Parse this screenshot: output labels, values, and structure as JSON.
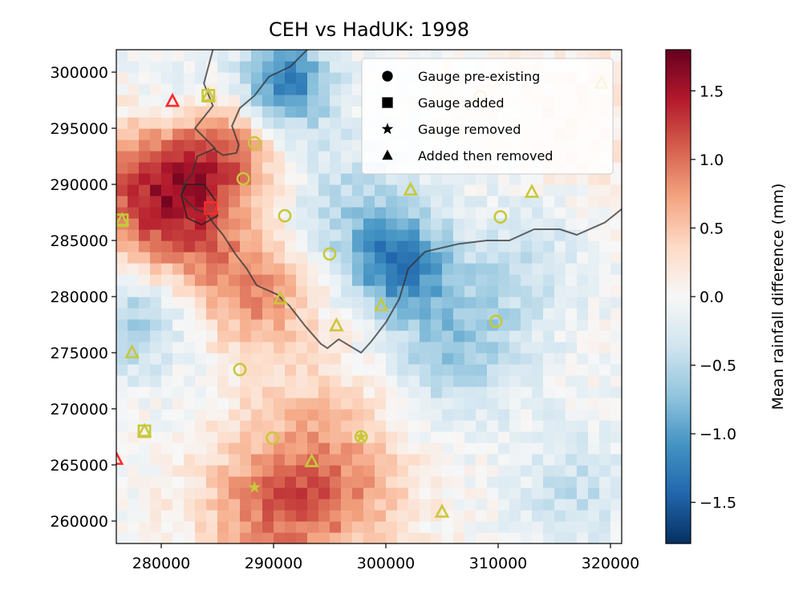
{
  "chart_data": {
    "type": "heatmap",
    "title": "CEH vs HadUK: 1998",
    "xlim": [
      276000,
      321000
    ],
    "ylim": [
      258000,
      302000
    ],
    "x_ticks": [
      280000,
      290000,
      300000,
      310000,
      320000
    ],
    "x_tick_labels": [
      "280000",
      "290000",
      "300000",
      "310000",
      "320000"
    ],
    "y_ticks": [
      260000,
      265000,
      270000,
      275000,
      280000,
      285000,
      290000,
      295000,
      300000
    ],
    "y_tick_labels": [
      "260000",
      "265000",
      "270000",
      "275000",
      "280000",
      "285000",
      "290000",
      "295000",
      "300000"
    ],
    "grid": false,
    "grid_cell_size": 1000,
    "colormap": "RdBu_r",
    "colorbar": {
      "label": "Mean rainfall difference (mm)",
      "range": [
        -1.8,
        1.8
      ],
      "ticks": [
        -1.5,
        -1.0,
        -0.5,
        0.0,
        0.5,
        1.0,
        1.5
      ],
      "tick_labels": [
        "−1.5",
        "−1.0",
        "−0.5",
        "0.0",
        "0.5",
        "1.0",
        "1.5"
      ]
    },
    "field_features": {
      "hot_spots": [
        {
          "x": 280000,
          "y": 289000,
          "value": 1.4,
          "spread": 4500
        },
        {
          "x": 286000,
          "y": 293000,
          "value": 0.8,
          "spread": 3500
        },
        {
          "x": 289000,
          "y": 280000,
          "value": 0.7,
          "spread": 3500
        },
        {
          "x": 290000,
          "y": 261000,
          "value": 0.9,
          "spread": 4500
        },
        {
          "x": 297000,
          "y": 262000,
          "value": 0.5,
          "spread": 4000
        },
        {
          "x": 294000,
          "y": 269000,
          "value": 0.4,
          "spread": 5000
        },
        {
          "x": 284000,
          "y": 283000,
          "value": 0.4,
          "spread": 4000
        },
        {
          "x": 316000,
          "y": 294000,
          "value": 0.3,
          "spread": 6000
        }
      ],
      "cold_spots": [
        {
          "x": 291000,
          "y": 299000,
          "value": -1.3,
          "spread": 3000
        },
        {
          "x": 301000,
          "y": 283000,
          "value": -1.1,
          "spread": 3000
        },
        {
          "x": 306000,
          "y": 276000,
          "value": -0.7,
          "spread": 4500
        },
        {
          "x": 278000,
          "y": 278000,
          "value": -0.7,
          "spread": 3500
        },
        {
          "x": 297000,
          "y": 288000,
          "value": -0.5,
          "spread": 4500
        },
        {
          "x": 313000,
          "y": 285000,
          "value": -0.4,
          "spread": 5000
        },
        {
          "x": 317000,
          "y": 263000,
          "value": -0.4,
          "spread": 4000
        },
        {
          "x": 281000,
          "y": 298000,
          "value": -0.3,
          "spread": 3000
        }
      ]
    },
    "boundaries": [
      {
        "color": "#333333",
        "points": [
          [
            284600,
            302000
          ],
          [
            283800,
            299000
          ],
          [
            284600,
            297000
          ],
          [
            283000,
            295000
          ],
          [
            284800,
            293200
          ],
          [
            283200,
            292500
          ],
          [
            282800,
            291000
          ],
          [
            282000,
            290000
          ],
          [
            281800,
            289000
          ],
          [
            283000,
            287800
          ],
          [
            284000,
            287500
          ],
          [
            284600,
            286600
          ],
          [
            285500,
            285500
          ],
          [
            286600,
            283800
          ],
          [
            287600,
            282500
          ],
          [
            288500,
            281000
          ],
          [
            290300,
            280200
          ],
          [
            291400,
            279200
          ],
          [
            292800,
            277400
          ],
          [
            294200,
            275800
          ],
          [
            294800,
            275400
          ],
          [
            295800,
            276200
          ],
          [
            297800,
            275000
          ],
          [
            298700,
            276000
          ],
          [
            300000,
            277700
          ],
          [
            301200,
            279800
          ],
          [
            302000,
            282500
          ],
          [
            303500,
            284000
          ],
          [
            306500,
            284700
          ],
          [
            309000,
            285000
          ],
          [
            311000,
            285000
          ],
          [
            313200,
            286000
          ],
          [
            315500,
            286000
          ],
          [
            317000,
            285500
          ],
          [
            319500,
            286600
          ],
          [
            321000,
            287800
          ]
        ]
      },
      {
        "color": "#333333",
        "points": [
          [
            293000,
            302000
          ],
          [
            291500,
            300500
          ],
          [
            289600,
            299600
          ],
          [
            288300,
            297900
          ],
          [
            287000,
            296800
          ],
          [
            286300,
            295200
          ],
          [
            286900,
            293500
          ],
          [
            286700,
            292800
          ],
          [
            285500,
            292600
          ],
          [
            284600,
            293200
          ]
        ]
      },
      {
        "color": "#222222",
        "points": [
          [
            281800,
            289000
          ],
          [
            282200,
            290000
          ],
          [
            283800,
            290000
          ],
          [
            284800,
            288600
          ],
          [
            285000,
            287200
          ],
          [
            283600,
            286400
          ],
          [
            282300,
            287000
          ],
          [
            281800,
            289000
          ]
        ]
      }
    ],
    "markers": [
      {
        "x": 281000,
        "y": 297400,
        "shape": "triangle",
        "color": "#ff2a2a"
      },
      {
        "x": 284200,
        "y": 297900,
        "shape": "square",
        "color": "#c8c83a"
      },
      {
        "x": 284200,
        "y": 297900,
        "shape": "triangle",
        "color": "#c8c83a"
      },
      {
        "x": 288300,
        "y": 293700,
        "shape": "circle",
        "color": "#c8c83a"
      },
      {
        "x": 287300,
        "y": 290500,
        "shape": "circle",
        "color": "#c8c83a"
      },
      {
        "x": 284400,
        "y": 287900,
        "shape": "square",
        "color": "#ff2a2a"
      },
      {
        "x": 276500,
        "y": 286800,
        "shape": "square",
        "color": "#c8c83a"
      },
      {
        "x": 276500,
        "y": 286800,
        "shape": "triangle",
        "color": "#c8c83a"
      },
      {
        "x": 291000,
        "y": 287200,
        "shape": "circle",
        "color": "#c8c83a"
      },
      {
        "x": 295000,
        "y": 283800,
        "shape": "circle",
        "color": "#c8c83a"
      },
      {
        "x": 302200,
        "y": 289500,
        "shape": "triangle",
        "color": "#c8c83a"
      },
      {
        "x": 313000,
        "y": 289300,
        "shape": "triangle",
        "color": "#c8c83a"
      },
      {
        "x": 310200,
        "y": 287100,
        "shape": "circle",
        "color": "#c8c83a"
      },
      {
        "x": 308400,
        "y": 297800,
        "shape": "circle",
        "color": "#c8c83a"
      },
      {
        "x": 319200,
        "y": 299000,
        "shape": "triangle",
        "color": "#c8c83a"
      },
      {
        "x": 290600,
        "y": 279800,
        "shape": "triangle",
        "color": "#c8c83a"
      },
      {
        "x": 299600,
        "y": 279200,
        "shape": "triangle",
        "color": "#c8c83a"
      },
      {
        "x": 295600,
        "y": 277400,
        "shape": "triangle",
        "color": "#c8c83a"
      },
      {
        "x": 309800,
        "y": 277800,
        "shape": "circle",
        "color": "#c8c83a"
      },
      {
        "x": 277400,
        "y": 275000,
        "shape": "triangle",
        "color": "#c8c83a"
      },
      {
        "x": 287000,
        "y": 273500,
        "shape": "circle",
        "color": "#c8c83a"
      },
      {
        "x": 278500,
        "y": 268000,
        "shape": "square",
        "color": "#c8c83a"
      },
      {
        "x": 278500,
        "y": 268000,
        "shape": "triangle",
        "color": "#c8c83a"
      },
      {
        "x": 289900,
        "y": 267400,
        "shape": "circle",
        "color": "#c8c83a"
      },
      {
        "x": 297800,
        "y": 267500,
        "shape": "circle",
        "color": "#c8c83a"
      },
      {
        "x": 297800,
        "y": 267500,
        "shape": "star",
        "color": "#c8c83a"
      },
      {
        "x": 293400,
        "y": 265300,
        "shape": "triangle",
        "color": "#c8c83a"
      },
      {
        "x": 288300,
        "y": 263000,
        "shape": "star",
        "color": "#c8c83a"
      },
      {
        "x": 305000,
        "y": 260800,
        "shape": "triangle",
        "color": "#c8c83a"
      },
      {
        "x": 276000,
        "y": 265500,
        "shape": "triangle",
        "color": "#ff2a2a"
      }
    ],
    "legend": {
      "placement": "top-right",
      "entries": [
        {
          "label": "Gauge pre-existing",
          "shape": "circle"
        },
        {
          "label": "Gauge added",
          "shape": "square"
        },
        {
          "label": "Gauge removed",
          "shape": "star"
        },
        {
          "label": "Added then removed",
          "shape": "triangle"
        }
      ]
    }
  }
}
